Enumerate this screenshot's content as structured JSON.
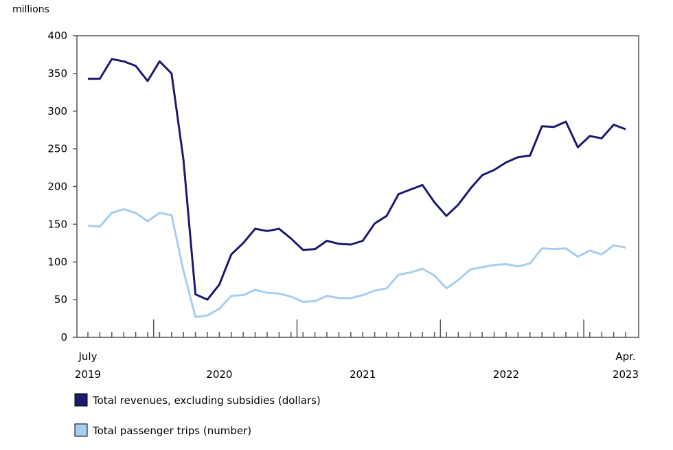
{
  "chart_data": {
    "type": "line",
    "unit_label": "millions",
    "ylim": [
      0,
      400
    ],
    "yticks": [
      0,
      50,
      100,
      150,
      200,
      250,
      300,
      350,
      400
    ],
    "grid": false,
    "legend_position": "bottom-left",
    "x": [
      "2019-07",
      "2019-08",
      "2019-09",
      "2019-10",
      "2019-11",
      "2019-12",
      "2020-01",
      "2020-02",
      "2020-03",
      "2020-04",
      "2020-05",
      "2020-06",
      "2020-07",
      "2020-08",
      "2020-09",
      "2020-10",
      "2020-11",
      "2020-12",
      "2021-01",
      "2021-02",
      "2021-03",
      "2021-04",
      "2021-05",
      "2021-06",
      "2021-07",
      "2021-08",
      "2021-09",
      "2021-10",
      "2021-11",
      "2021-12",
      "2022-01",
      "2022-02",
      "2022-03",
      "2022-04",
      "2022-05",
      "2022-06",
      "2022-07",
      "2022-08",
      "2022-09",
      "2022-10",
      "2022-11",
      "2022-12",
      "2023-01",
      "2023-02",
      "2023-03",
      "2023-04"
    ],
    "x_tick_labels": [
      {
        "date": "2019-07",
        "line1": "July",
        "line2": "2019"
      },
      {
        "date": "2020-06",
        "line1": "",
        "line2": "2020"
      },
      {
        "date": "2021-06",
        "line1": "",
        "line2": "2021"
      },
      {
        "date": "2022-06",
        "line1": "",
        "line2": "2022"
      },
      {
        "date": "2023-04",
        "line1": "Apr.",
        "line2": "2023"
      }
    ],
    "year_boundaries": [
      "2020-01",
      "2021-01",
      "2022-01",
      "2023-01"
    ],
    "series": [
      {
        "name": "Total revenues, excluding subsidies (dollars)",
        "color": "#1a1a6e",
        "values": [
          343,
          343,
          369,
          366,
          360,
          340,
          366,
          350,
          235,
          57,
          50,
          70,
          110,
          125,
          144,
          141,
          144,
          131,
          116,
          117,
          128,
          124,
          123,
          128,
          151,
          161,
          190,
          196,
          202,
          179,
          161,
          176,
          197,
          215,
          222,
          232,
          239,
          241,
          280,
          279,
          286,
          252,
          267,
          264,
          282,
          276
        ]
      },
      {
        "name": "Total passenger trips (number)",
        "color": "#a6cef0",
        "values": [
          148,
          147,
          165,
          170,
          165,
          154,
          165,
          162,
          88,
          27,
          29,
          38,
          55,
          56,
          63,
          59,
          58,
          54,
          47,
          48,
          55,
          52,
          52,
          56,
          62,
          65,
          83,
          86,
          91,
          82,
          65,
          76,
          90,
          93,
          96,
          97,
          94,
          98,
          118,
          117,
          118,
          107,
          115,
          110,
          122,
          119
        ]
      }
    ]
  }
}
